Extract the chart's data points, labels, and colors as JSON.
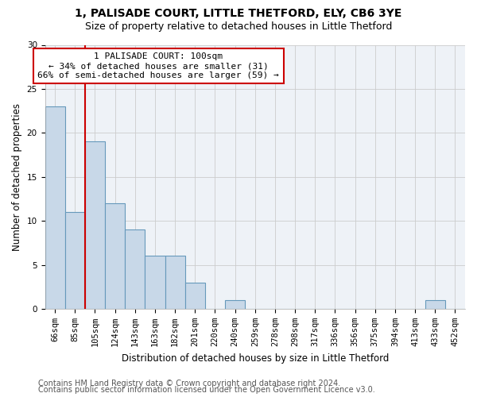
{
  "title_line1": "1, PALISADE COURT, LITTLE THETFORD, ELY, CB6 3YE",
  "title_line2": "Size of property relative to detached houses in Little Thetford",
  "xlabel": "Distribution of detached houses by size in Little Thetford",
  "ylabel": "Number of detached properties",
  "categories": [
    "66sqm",
    "85sqm",
    "105sqm",
    "124sqm",
    "143sqm",
    "163sqm",
    "182sqm",
    "201sqm",
    "220sqm",
    "240sqm",
    "259sqm",
    "278sqm",
    "298sqm",
    "317sqm",
    "336sqm",
    "356sqm",
    "375sqm",
    "394sqm",
    "413sqm",
    "433sqm",
    "452sqm"
  ],
  "values": [
    23,
    11,
    19,
    12,
    9,
    6,
    6,
    3,
    0,
    1,
    0,
    0,
    0,
    0,
    0,
    0,
    0,
    0,
    0,
    1,
    0
  ],
  "bar_color": "#c8d8e8",
  "bar_edge_color": "#6699bb",
  "vline_color": "#cc0000",
  "annotation_text": "1 PALISADE COURT: 100sqm\n← 34% of detached houses are smaller (31)\n66% of semi-detached houses are larger (59) →",
  "annotation_box_color": "#ffffff",
  "annotation_box_edge": "#cc0000",
  "ylim": [
    0,
    30
  ],
  "yticks": [
    0,
    5,
    10,
    15,
    20,
    25,
    30
  ],
  "grid_color": "#cccccc",
  "bg_color": "#eef2f7",
  "footer_line1": "Contains HM Land Registry data © Crown copyright and database right 2024.",
  "footer_line2": "Contains public sector information licensed under the Open Government Licence v3.0.",
  "title_fontsize": 10,
  "subtitle_fontsize": 9,
  "axis_label_fontsize": 8.5,
  "tick_fontsize": 7.5,
  "annotation_fontsize": 8,
  "footer_fontsize": 7
}
